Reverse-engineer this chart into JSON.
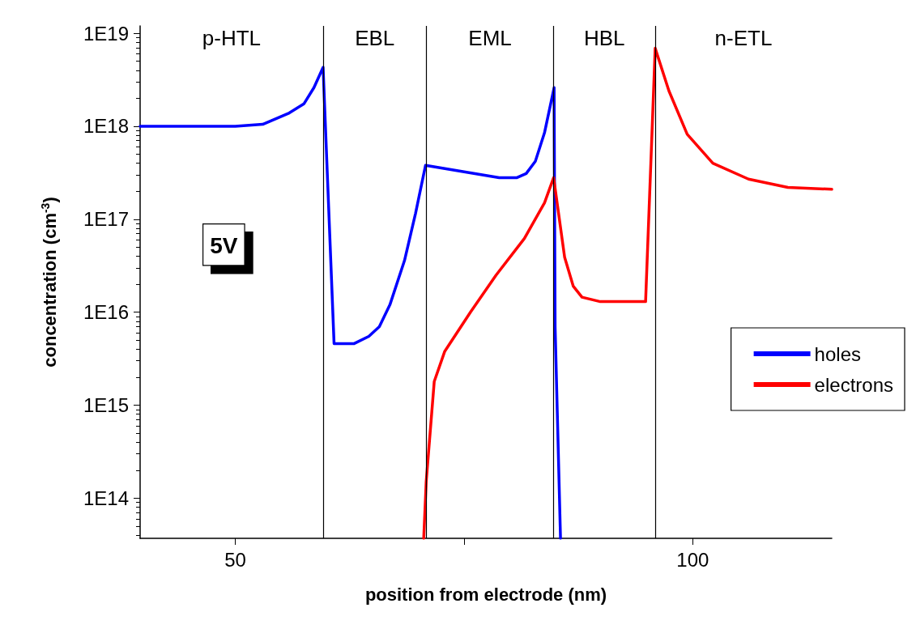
{
  "chart_data": {
    "type": "line",
    "xlabel": "position from electrode (nm)",
    "ylabel": "concentration (cm$^{-3}$)",
    "xlim": [
      39.6,
      115.2
    ],
    "xticks": [
      50,
      {
        "value": 75,
        "label": null
      },
      100
    ],
    "ylim": [
      37000000000000.0,
      1.2e+19
    ],
    "yticks": [
      {
        "value": 100000000000000.0,
        "label": "1E14"
      },
      {
        "value": 1000000000000000.0,
        "label": "1E15"
      },
      {
        "value": 1e+16,
        "label": "1E16"
      },
      {
        "value": 1e+17,
        "label": "1E17"
      },
      {
        "value": 1e+18,
        "label": "1E18"
      },
      {
        "value": 1e+19,
        "label": "1E19"
      }
    ],
    "log": "y",
    "grid": false,
    "legend": "right",
    "marker": "none",
    "line_style": "solid",
    "series": [
      {
        "name": "holes",
        "color": "#0000ff",
        "x": [
          39.6,
          50,
          53,
          55.9,
          57.5,
          58.6,
          59.6,
          60.8,
          63.0,
          64.6,
          65.75,
          66.9,
          68.5,
          69.7,
          70.8,
          78.85,
          80.8,
          81.8,
          82.8,
          83.8,
          84.85,
          84.96,
          85.55
        ],
        "values": [
          1e+18,
          1e+18,
          1.05e+18,
          1.39e+18,
          1.74e+18,
          2.6e+18,
          4.3e+18,
          4600000000000000.0,
          4600000000000000.0,
          5500000000000000.0,
          7000000000000000.0,
          1.2e+16,
          3.6e+16,
          1.15e+17,
          3.8e+17,
          2.8e+17,
          2.8e+17,
          3.1e+17,
          4.2e+17,
          8.5e+17,
          2.6e+18,
          7000000000000000.0,
          37000000000000.0
        ]
      },
      {
        "name": "electrons",
        "color": "#ff0000",
        "x": [
          70.6,
          70.87,
          71.75,
          72.9,
          75.7,
          78.5,
          81.6,
          83.8,
          84.8,
          86.0,
          86.95,
          87.9,
          89.9,
          94.85,
          95.9,
          97.4,
          99.4,
          102.2,
          106.1,
          110.4,
          115.2
        ],
        "values": [
          37000000000000.0,
          150000000000000.0,
          1800000000000000.0,
          3800000000000000.0,
          1e+16,
          2.5e+16,
          6.2e+16,
          1.5e+17,
          2.8e+17,
          3.9e+16,
          1.9e+16,
          1.45e+16,
          1.3e+16,
          1.3e+16,
          6.9e+18,
          2.4e+18,
          8.2e+17,
          4e+17,
          2.7e+17,
          2.2e+17,
          2.1e+17
        ]
      }
    ],
    "ref_lines": [
      {
        "axis": "x",
        "value": 59.6,
        "color": "#000000"
      },
      {
        "axis": "x",
        "value": 70.9,
        "color": "#000000"
      },
      {
        "axis": "x",
        "value": 84.8,
        "color": "#000000"
      },
      {
        "axis": "x",
        "value": 95.9,
        "color": "#000000"
      }
    ],
    "annotations": [
      "p-HTL",
      "EBL",
      "EML",
      "HBL",
      "n-ETL",
      "5V"
    ]
  }
}
